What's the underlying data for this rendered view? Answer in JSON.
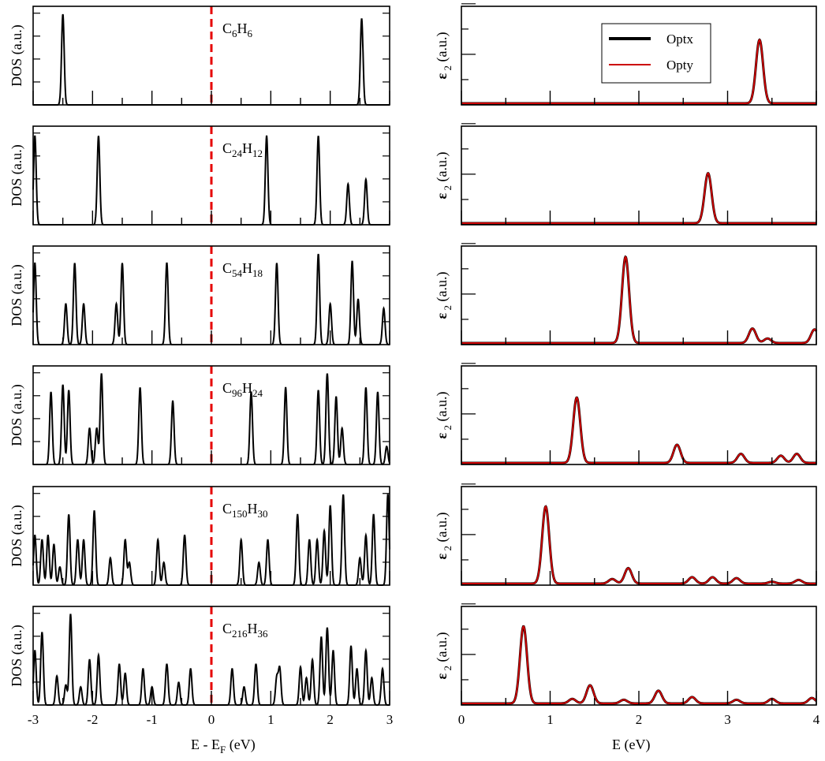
{
  "chart_data": [
    {
      "type": "line",
      "name": "C6H6",
      "formula": {
        "c": "6",
        "h": "6"
      },
      "ylabel": "DOS (a.u.)",
      "xlim": [
        -3,
        3
      ],
      "fermi_level": 0,
      "peaks": [
        [
          -2.5,
          1.0
        ],
        [
          2.53,
          0.95
        ]
      ]
    },
    {
      "type": "line",
      "name": "C24H12",
      "formula": {
        "c": "24",
        "h": "12"
      },
      "ylabel": "DOS (a.u.)",
      "xlim": [
        -3,
        3
      ],
      "fermi_level": 0,
      "peaks": [
        [
          -2.97,
          0.98
        ],
        [
          -1.9,
          0.98
        ],
        [
          0.93,
          0.98
        ],
        [
          1.8,
          0.98
        ],
        [
          2.3,
          0.45
        ],
        [
          2.6,
          0.5
        ]
      ]
    },
    {
      "type": "line",
      "name": "C54H18",
      "formula": {
        "c": "54",
        "h": "18"
      },
      "ylabel": "DOS (a.u.)",
      "xlim": [
        -3,
        3
      ],
      "fermi_level": 0,
      "peaks": [
        [
          -2.97,
          0.9
        ],
        [
          -2.45,
          0.45
        ],
        [
          -2.3,
          0.9
        ],
        [
          -2.15,
          0.45
        ],
        [
          -1.6,
          0.45
        ],
        [
          -1.5,
          0.9
        ],
        [
          -0.75,
          0.9
        ],
        [
          1.1,
          0.9
        ],
        [
          1.8,
          1.0
        ],
        [
          2.0,
          0.45
        ],
        [
          2.37,
          0.92
        ],
        [
          2.47,
          0.5
        ],
        [
          2.9,
          0.4
        ]
      ]
    },
    {
      "type": "line",
      "name": "C96H24",
      "formula": {
        "c": "96",
        "h": "24"
      },
      "ylabel": "DOS (a.u.)",
      "xlim": [
        -3,
        3
      ],
      "fermi_level": 0,
      "peaks": [
        [
          -2.7,
          0.8
        ],
        [
          -2.5,
          0.88
        ],
        [
          -2.4,
          0.82
        ],
        [
          -2.05,
          0.4
        ],
        [
          -1.93,
          0.4
        ],
        [
          -1.85,
          1.0
        ],
        [
          -1.2,
          0.85
        ],
        [
          -0.65,
          0.7
        ],
        [
          0.67,
          0.8
        ],
        [
          1.25,
          0.85
        ],
        [
          1.8,
          0.82
        ],
        [
          1.95,
          1.0
        ],
        [
          2.1,
          0.75
        ],
        [
          2.2,
          0.4
        ],
        [
          2.6,
          0.85
        ],
        [
          2.8,
          0.8
        ],
        [
          2.95,
          0.2
        ]
      ]
    },
    {
      "type": "line",
      "name": "C150H30",
      "formula": {
        "c": "150",
        "h": "30"
      },
      "ylabel": "DOS (a.u.)",
      "xlim": [
        -3,
        3
      ],
      "fermi_level": 0,
      "peaks": [
        [
          -2.97,
          0.55
        ],
        [
          -2.85,
          0.5
        ],
        [
          -2.75,
          0.55
        ],
        [
          -2.65,
          0.45
        ],
        [
          -2.55,
          0.2
        ],
        [
          -2.4,
          0.78
        ],
        [
          -2.25,
          0.5
        ],
        [
          -2.15,
          0.5
        ],
        [
          -1.97,
          0.82
        ],
        [
          -1.7,
          0.3
        ],
        [
          -1.45,
          0.5
        ],
        [
          -1.38,
          0.25
        ],
        [
          -0.9,
          0.5
        ],
        [
          -0.8,
          0.25
        ],
        [
          -0.45,
          0.55
        ],
        [
          0.5,
          0.5
        ],
        [
          0.8,
          0.25
        ],
        [
          0.95,
          0.5
        ],
        [
          1.45,
          0.78
        ],
        [
          1.65,
          0.5
        ],
        [
          1.78,
          0.5
        ],
        [
          1.9,
          0.6
        ],
        [
          2.0,
          0.88
        ],
        [
          2.22,
          1.0
        ],
        [
          2.5,
          0.3
        ],
        [
          2.6,
          0.55
        ],
        [
          2.73,
          0.78
        ],
        [
          2.97,
          1.0
        ]
      ]
    },
    {
      "type": "line",
      "name": "C216H36",
      "formula": {
        "c": "216",
        "h": "36"
      },
      "ylabel": "DOS (a.u.)",
      "xlim": [
        -3,
        3
      ],
      "fermi_level": 0,
      "peaks": [
        [
          -2.97,
          0.6
        ],
        [
          -2.85,
          0.8
        ],
        [
          -2.6,
          0.32
        ],
        [
          -2.45,
          0.22
        ],
        [
          -2.37,
          1.0
        ],
        [
          -2.2,
          0.2
        ],
        [
          -2.05,
          0.5
        ],
        [
          -1.9,
          0.55
        ],
        [
          -1.55,
          0.45
        ],
        [
          -1.45,
          0.35
        ],
        [
          -1.15,
          0.4
        ],
        [
          -1.0,
          0.2
        ],
        [
          -0.75,
          0.45
        ],
        [
          -0.55,
          0.25
        ],
        [
          -0.35,
          0.4
        ],
        [
          0.35,
          0.4
        ],
        [
          0.55,
          0.2
        ],
        [
          0.75,
          0.45
        ],
        [
          1.1,
          0.3
        ],
        [
          1.15,
          0.4
        ],
        [
          1.5,
          0.42
        ],
        [
          1.6,
          0.3
        ],
        [
          1.7,
          0.5
        ],
        [
          1.85,
          0.75
        ],
        [
          1.95,
          0.85
        ],
        [
          2.05,
          0.6
        ],
        [
          2.35,
          0.65
        ],
        [
          2.45,
          0.4
        ],
        [
          2.6,
          0.6
        ],
        [
          2.7,
          0.3
        ],
        [
          2.88,
          0.4
        ]
      ]
    }
  ],
  "optical_panels": [
    {
      "ylabel": "ε",
      "ylabel_sub": "2",
      "ylabel_unit": "(a.u.)",
      "xlim": [
        0,
        4
      ],
      "peaks": [
        [
          3.36,
          0.7
        ]
      ]
    },
    {
      "ylabel": "ε",
      "ylabel_sub": "2",
      "ylabel_unit": "(a.u.)",
      "xlim": [
        0,
        4
      ],
      "peaks": [
        [
          2.78,
          0.55
        ]
      ]
    },
    {
      "ylabel": "ε",
      "ylabel_sub": "2",
      "ylabel_unit": "(a.u.)",
      "xlim": [
        0,
        4
      ],
      "peaks": [
        [
          1.85,
          0.95
        ],
        [
          3.28,
          0.16
        ],
        [
          3.45,
          0.05
        ],
        [
          3.98,
          0.15
        ]
      ]
    },
    {
      "ylabel": "ε",
      "ylabel_sub": "2",
      "ylabel_unit": "(a.u.)",
      "xlim": [
        0,
        4
      ],
      "peaks": [
        [
          1.3,
          0.72
        ],
        [
          2.43,
          0.2
        ],
        [
          3.15,
          0.1
        ],
        [
          3.6,
          0.08
        ],
        [
          3.78,
          0.1
        ]
      ]
    },
    {
      "ylabel": "ε",
      "ylabel_sub": "2",
      "ylabel_unit": "(a.u.)",
      "xlim": [
        0,
        4
      ],
      "peaks": [
        [
          0.95,
          0.85
        ],
        [
          1.7,
          0.05
        ],
        [
          1.88,
          0.17
        ],
        [
          2.6,
          0.07
        ],
        [
          2.83,
          0.07
        ],
        [
          3.1,
          0.06
        ],
        [
          3.5,
          0.02
        ],
        [
          3.8,
          0.04
        ]
      ]
    },
    {
      "ylabel": "ε",
      "ylabel_sub": "2",
      "ylabel_unit": "(a.u.)",
      "xlim": [
        0,
        4
      ],
      "peaks": [
        [
          0.7,
          0.85
        ],
        [
          1.25,
          0.05
        ],
        [
          1.45,
          0.2
        ],
        [
          1.83,
          0.04
        ],
        [
          2.22,
          0.14
        ],
        [
          2.6,
          0.07
        ],
        [
          3.1,
          0.04
        ],
        [
          3.5,
          0.05
        ],
        [
          3.95,
          0.06
        ]
      ]
    }
  ],
  "legend": {
    "items": [
      {
        "label": "Optx",
        "color": "#000000"
      },
      {
        "label": "Opty",
        "color": "#cc0000"
      }
    ]
  },
  "left_axis": {
    "ticks": [
      "-3",
      "-2",
      "-1",
      "0",
      "1",
      "2",
      "3"
    ],
    "xlabel_main": "E - E",
    "xlabel_sub": "F",
    "xlabel_unit": " (eV)"
  },
  "right_axis": {
    "ticks": [
      "0",
      "1",
      "2",
      "3",
      "4"
    ],
    "xlabel": "E (eV)"
  },
  "colors": {
    "dos_line": "#000000",
    "fermi_line": "#e60000",
    "optx": "#000000",
    "opty": "#cc0000",
    "frame": "#000000"
  }
}
